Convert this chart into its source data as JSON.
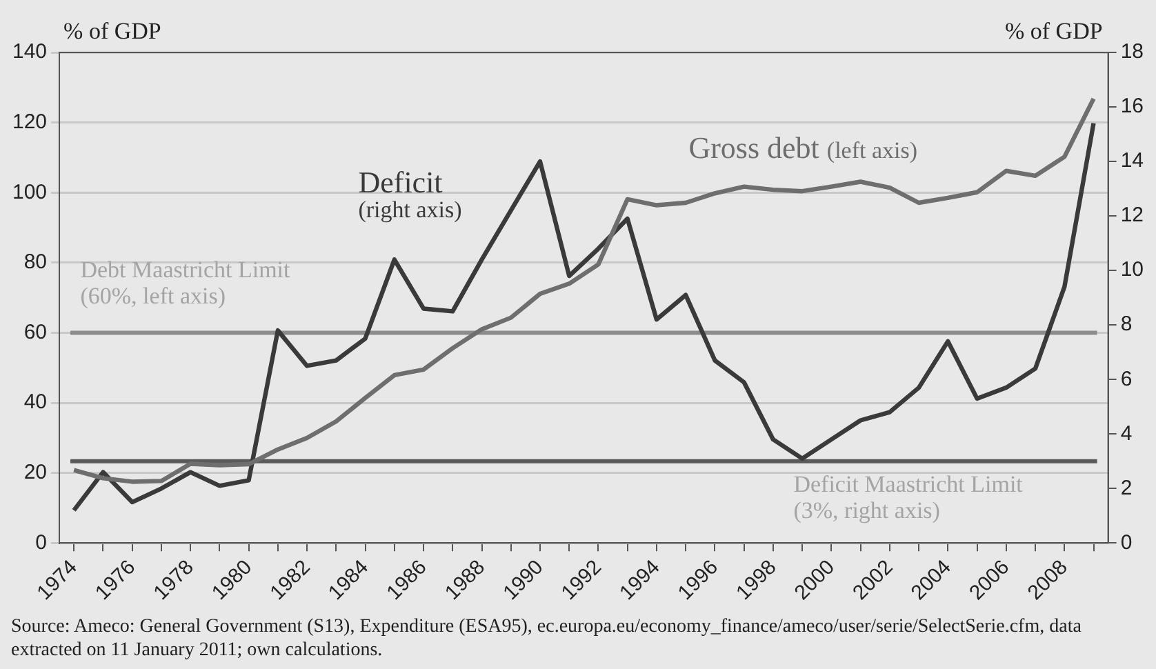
{
  "chart_data": {
    "type": "line",
    "x": [
      1974,
      1975,
      1976,
      1977,
      1978,
      1979,
      1980,
      1981,
      1982,
      1983,
      1984,
      1985,
      1986,
      1987,
      1988,
      1989,
      1990,
      1991,
      1992,
      1993,
      1994,
      1995,
      1996,
      1997,
      1998,
      1999,
      2000,
      2001,
      2002,
      2003,
      2004,
      2005,
      2006,
      2007,
      2008,
      2009
    ],
    "xlim": [
      1973.5,
      2009.5
    ],
    "xticks": [
      {
        "value": 1974,
        "label": "1974"
      },
      {
        "value": 1975,
        "label": null
      },
      {
        "value": 1976,
        "label": "1976"
      },
      {
        "value": 1977,
        "label": null
      },
      {
        "value": 1978,
        "label": "1978"
      },
      {
        "value": 1979,
        "label": null
      },
      {
        "value": 1980,
        "label": "1980"
      },
      {
        "value": 1981,
        "label": null
      },
      {
        "value": 1982,
        "label": "1982"
      },
      {
        "value": 1983,
        "label": null
      },
      {
        "value": 1984,
        "label": "1984"
      },
      {
        "value": 1985,
        "label": null
      },
      {
        "value": 1986,
        "label": "1986"
      },
      {
        "value": 1987,
        "label": null
      },
      {
        "value": 1988,
        "label": "1988"
      },
      {
        "value": 1989,
        "label": null
      },
      {
        "value": 1990,
        "label": "1990"
      },
      {
        "value": 1991,
        "label": null
      },
      {
        "value": 1992,
        "label": "1992"
      },
      {
        "value": 1993,
        "label": null
      },
      {
        "value": 1994,
        "label": "1994"
      },
      {
        "value": 1995,
        "label": null
      },
      {
        "value": 1996,
        "label": "1996"
      },
      {
        "value": 1997,
        "label": null
      },
      {
        "value": 1998,
        "label": "1998"
      },
      {
        "value": 1999,
        "label": null
      },
      {
        "value": 2000,
        "label": "2000"
      },
      {
        "value": 2001,
        "label": null
      },
      {
        "value": 2002,
        "label": "2002"
      },
      {
        "value": 2003,
        "label": null
      },
      {
        "value": 2004,
        "label": "2004"
      },
      {
        "value": 2005,
        "label": null
      },
      {
        "value": 2006,
        "label": "2006"
      },
      {
        "value": 2007,
        "label": null
      },
      {
        "value": 2008,
        "label": "2008"
      },
      {
        "value": 2009,
        "label": null
      }
    ],
    "ylim": [
      0,
      140
    ],
    "yticks": [
      0,
      20,
      40,
      60,
      80,
      100,
      120,
      140
    ],
    "y2lim": [
      0,
      18
    ],
    "y2ticks": [
      0,
      2,
      4,
      6,
      8,
      10,
      12,
      14,
      16,
      18
    ],
    "ylabel": "% of GDP",
    "y2label": "% of GDP",
    "grid": "y",
    "legend": false,
    "marker": "none",
    "series": [
      {
        "name": "Gross debt (left axis)",
        "color": "#6e6e6e",
        "values": [
          20.8,
          18.5,
          17.5,
          17.7,
          22.6,
          22.2,
          22.5,
          26.7,
          30.0,
          34.7,
          41.4,
          47.9,
          49.5,
          55.6,
          61.0,
          64.3,
          71.1,
          74.0,
          79.5,
          98.1,
          96.4,
          97.1,
          99.8,
          101.7,
          100.8,
          100.4,
          101.7,
          103.1,
          101.4,
          97.1,
          98.5,
          100.1,
          106.2,
          104.8,
          110.2,
          126.8
        ]
      },
      {
        "name": "Deficit (right axis)",
        "color": "#3a3a3a",
        "axis": "y2",
        "values": [
          1.2,
          2.6,
          1.5,
          2.0,
          2.6,
          2.1,
          2.3,
          7.8,
          6.5,
          6.7,
          7.5,
          10.4,
          8.6,
          8.5,
          10.4,
          12.2,
          14.0,
          9.8,
          10.8,
          11.9,
          8.2,
          9.1,
          6.7,
          5.9,
          3.8,
          3.1,
          3.8,
          4.5,
          4.8,
          5.7,
          7.4,
          5.3,
          5.7,
          6.4,
          9.4,
          15.4
        ]
      }
    ],
    "ref_lines": [
      {
        "axis": "y",
        "value": 60,
        "label": "Debt Maastricht Limit (60%, left axis)",
        "color": "#8c8c8c"
      },
      {
        "axis": "y2",
        "value": 3,
        "label": "Deficit Maastricht Limit (3%, right axis)",
        "color": "#5a5a5a"
      }
    ],
    "annotations": [
      "Source: Ameco: General Government (S13), Expenditure (ESA95), ec.europa.eu/economy_finance/ameco/user/serie/SelectSerie.cfm, data extracted on 11 January 2011; own calculations."
    ]
  }
}
